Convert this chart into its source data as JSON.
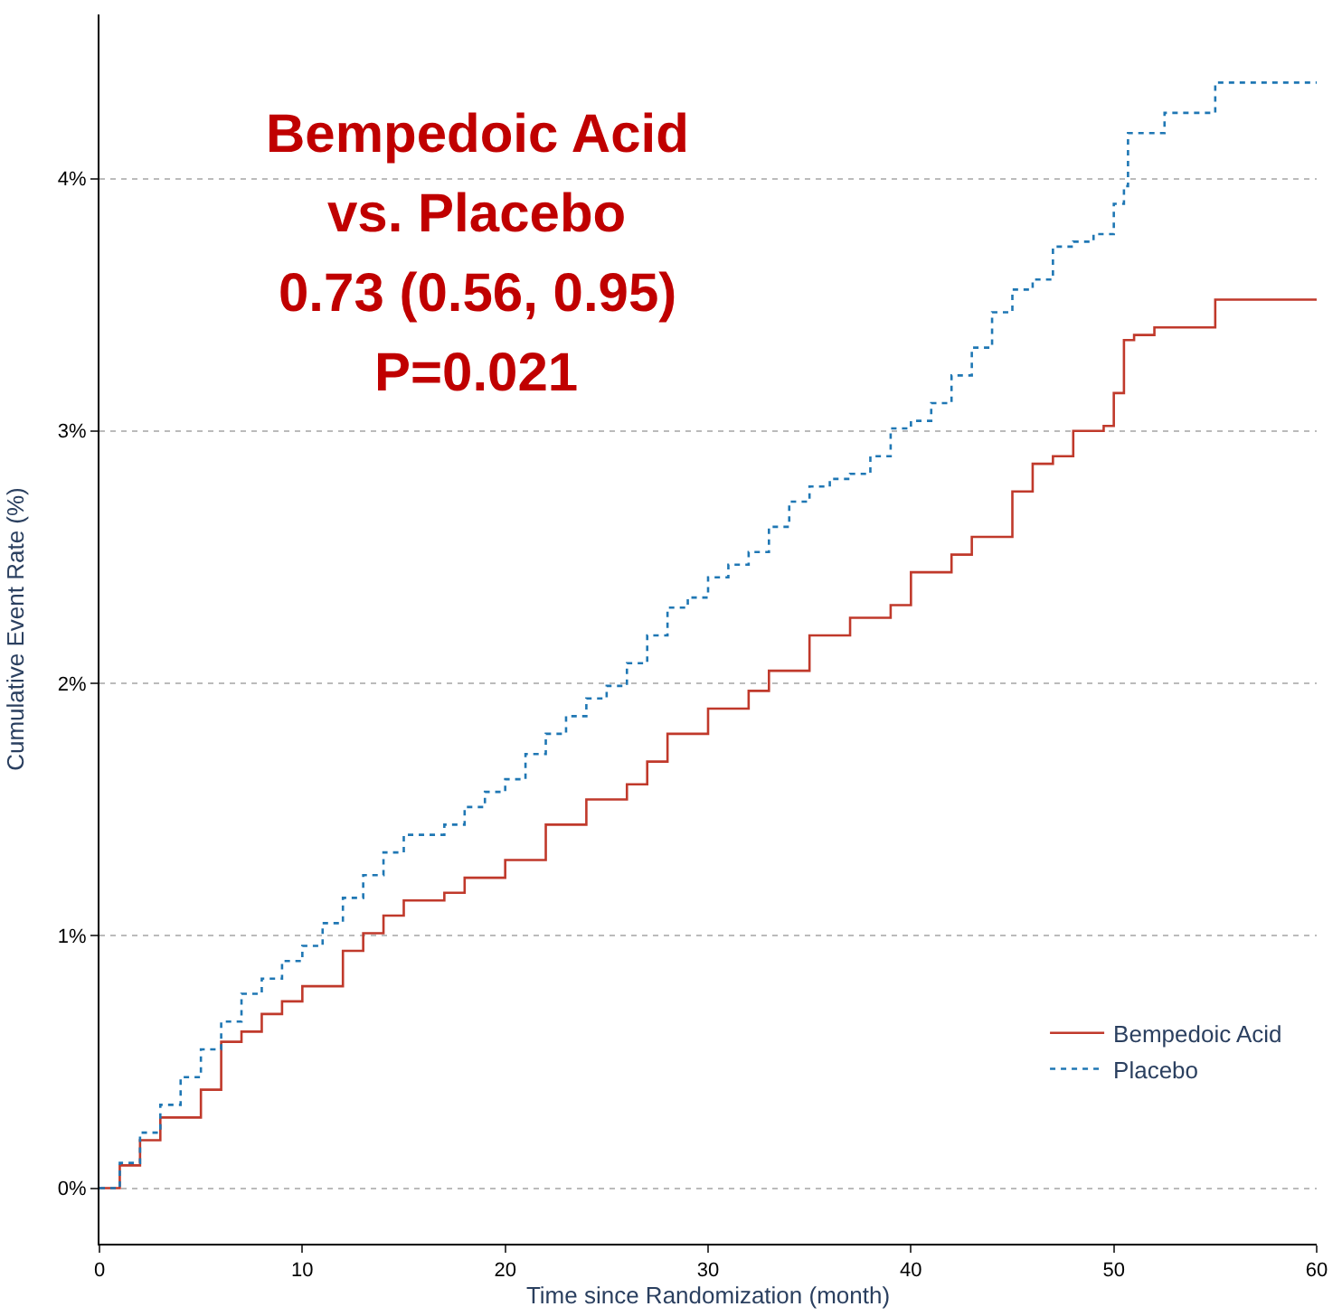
{
  "chart_data": {
    "type": "step",
    "xlabel": "Time since Randomization (month)",
    "ylabel": "Cumulative Event Rate (%)",
    "annotations": [
      "Bempedoic Acid",
      "vs. Placebo",
      "0.73 (0.56, 0.95)",
      "P=0.021"
    ],
    "xlim": [
      0,
      60
    ],
    "xticks": [
      0,
      10,
      20,
      30,
      40,
      50,
      60
    ],
    "ylim": [
      -0.22,
      4.65
    ],
    "yticks": [
      {
        "value": 0,
        "label": "0%"
      },
      {
        "value": 1,
        "label": "1%"
      },
      {
        "value": 2,
        "label": "2%"
      },
      {
        "value": 3,
        "label": "3%"
      },
      {
        "value": 4,
        "label": "4%"
      }
    ],
    "grid": "y",
    "legend": "bottom right",
    "marker": "none",
    "series": [
      {
        "name": "Bempedoic Acid",
        "color": "#c0392b",
        "line_style": "solid",
        "x": [
          0,
          1,
          2,
          3,
          5,
          6,
          7,
          8,
          9,
          10,
          12,
          13,
          14,
          15,
          17,
          18,
          20,
          22,
          24,
          26,
          27,
          28,
          30,
          32,
          33,
          35,
          37,
          39,
          40,
          42,
          43,
          45,
          46,
          47,
          48,
          49.5,
          50,
          50.5,
          51,
          52,
          55,
          60
        ],
        "values": [
          0,
          0.09,
          0.19,
          0.28,
          0.39,
          0.58,
          0.62,
          0.69,
          0.74,
          0.8,
          0.94,
          1.01,
          1.08,
          1.14,
          1.17,
          1.23,
          1.3,
          1.44,
          1.54,
          1.6,
          1.69,
          1.8,
          1.9,
          1.97,
          2.05,
          2.19,
          2.26,
          2.31,
          2.44,
          2.51,
          2.58,
          2.76,
          2.87,
          2.9,
          3.0,
          3.02,
          3.15,
          3.36,
          3.38,
          3.41,
          3.52,
          3.52
        ]
      },
      {
        "name": "Placebo",
        "color": "#1f77b4",
        "line_style": "dotted",
        "x": [
          0,
          1,
          2,
          3,
          4,
          5,
          6,
          7,
          8,
          9,
          10,
          11,
          12,
          13,
          14,
          15,
          17,
          18,
          19,
          20,
          21,
          22,
          23,
          24,
          25,
          26,
          27,
          28,
          29,
          30,
          31,
          32,
          33,
          34,
          35,
          36,
          37,
          38,
          39,
          40,
          41,
          42,
          43,
          44,
          45,
          46,
          47,
          48,
          49,
          50,
          50.5,
          50.7,
          52.5,
          55,
          60
        ],
        "values": [
          0,
          0.1,
          0.22,
          0.33,
          0.44,
          0.55,
          0.66,
          0.77,
          0.83,
          0.9,
          0.96,
          1.05,
          1.15,
          1.24,
          1.33,
          1.4,
          1.44,
          1.51,
          1.57,
          1.62,
          1.72,
          1.8,
          1.87,
          1.94,
          1.99,
          2.08,
          2.19,
          2.3,
          2.34,
          2.42,
          2.47,
          2.52,
          2.62,
          2.72,
          2.78,
          2.81,
          2.83,
          2.9,
          3.01,
          3.04,
          3.11,
          3.22,
          3.33,
          3.47,
          3.56,
          3.6,
          3.73,
          3.75,
          3.78,
          3.9,
          3.97,
          4.18,
          4.26,
          4.38,
          4.38
        ]
      }
    ]
  }
}
